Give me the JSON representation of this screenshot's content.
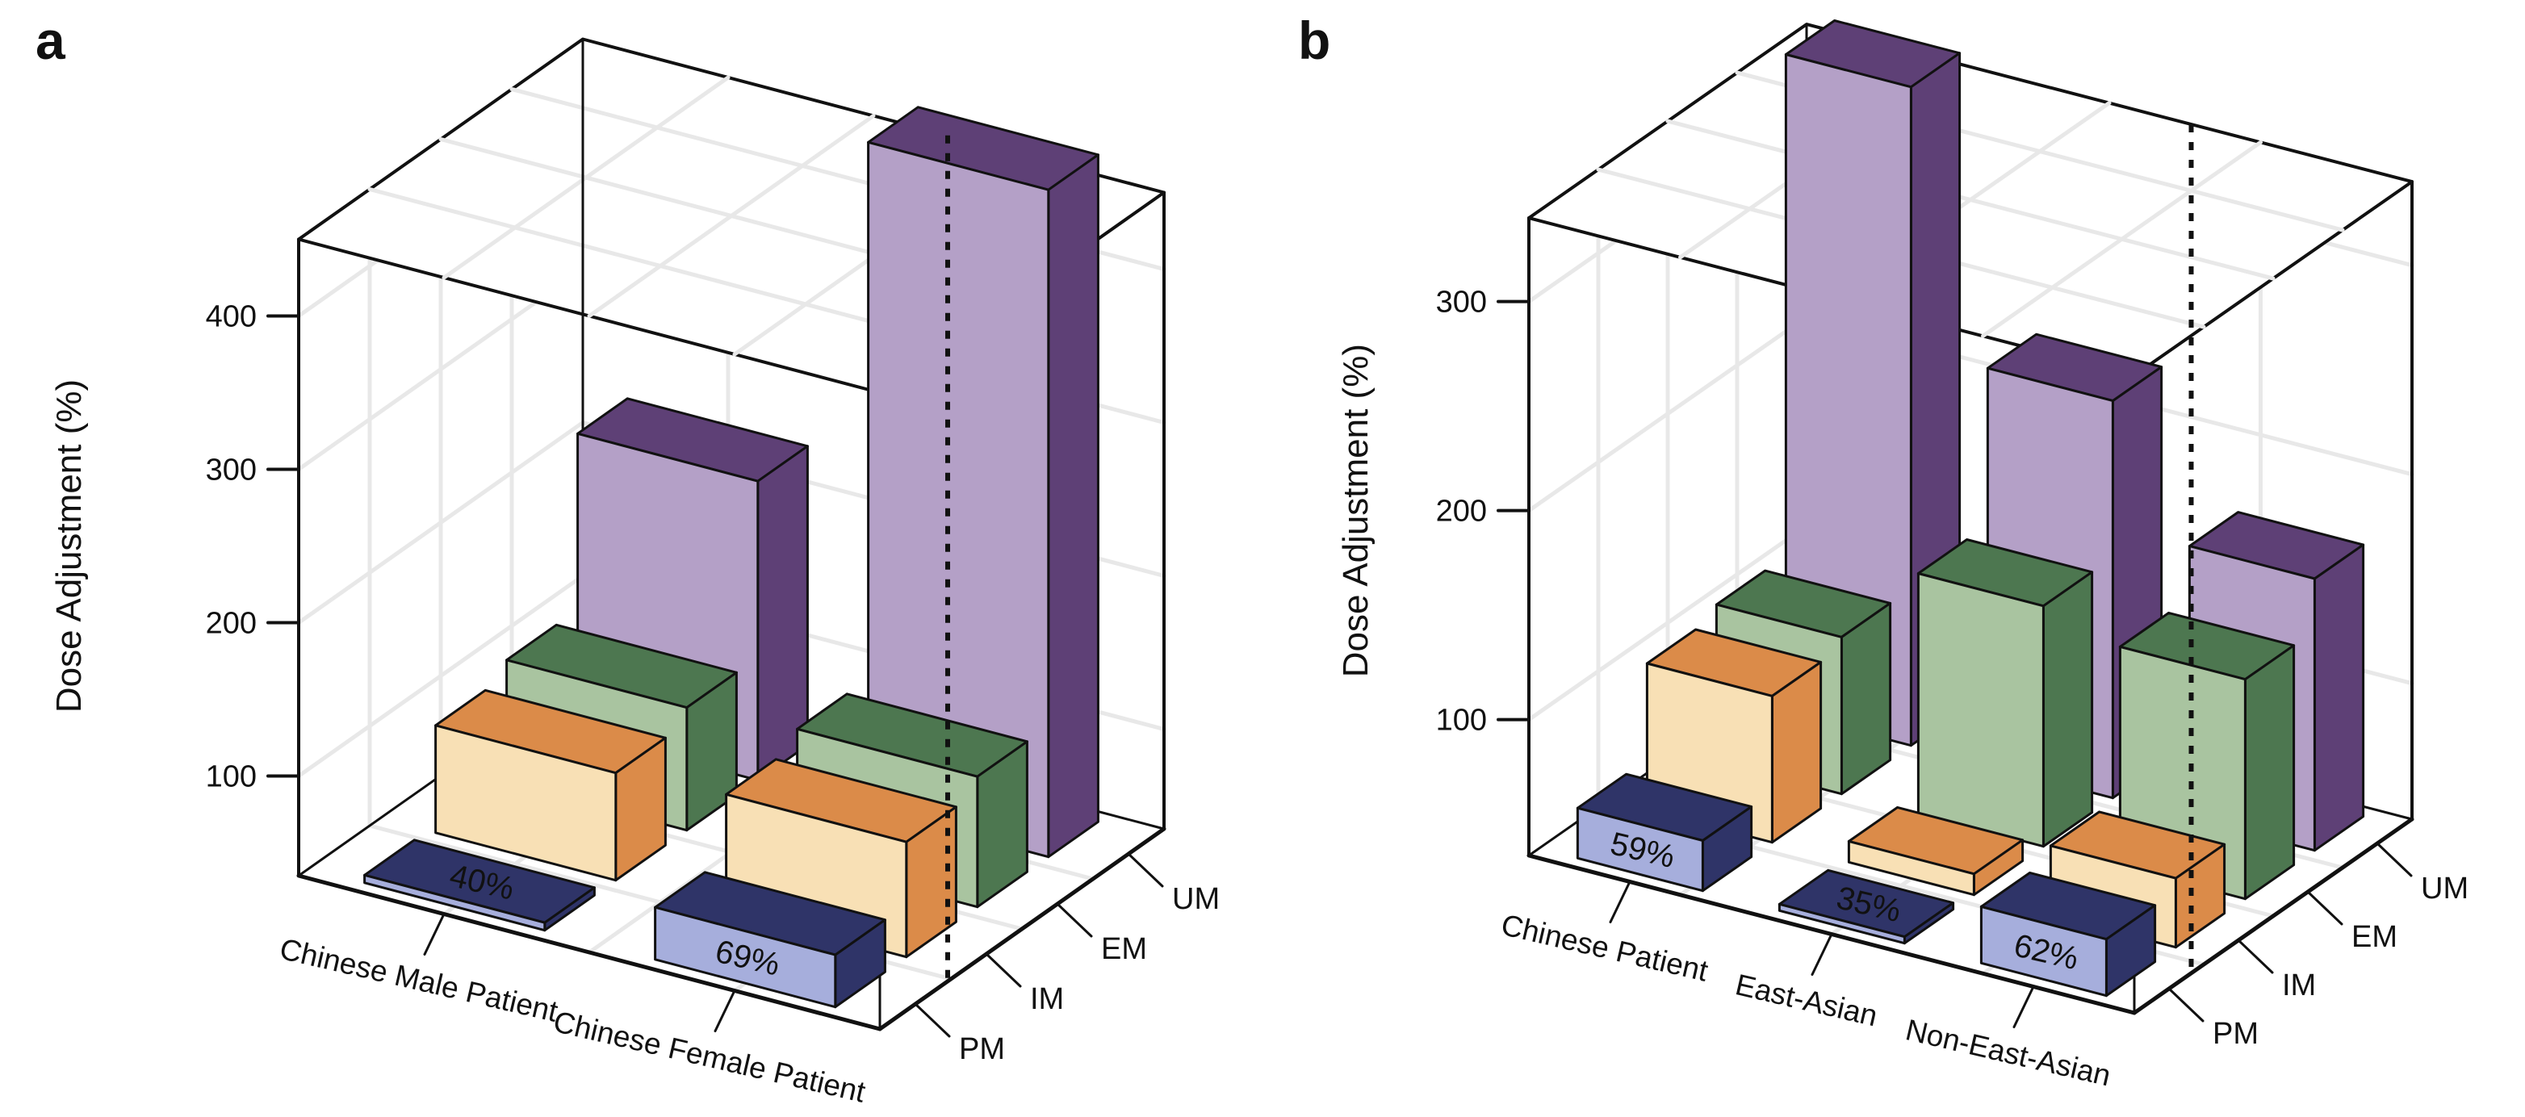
{
  "chart_data": [
    {
      "type": "bar",
      "projection": "3d",
      "letter": "a",
      "ylabel": "Dose Adjustment (%)",
      "yticks": [
        100,
        200,
        300,
        400
      ],
      "baseline": 35,
      "axis_top": 450,
      "grid": true,
      "depth_labels": [
        "PM",
        "IM",
        "EM",
        "UM"
      ],
      "categories": [
        {
          "label": "Chinese Male Patient",
          "pm_text": "40%",
          "values": {
            "PM": 40,
            "IM": 105,
            "EM": 115,
            "UM": 230
          }
        },
        {
          "label": "Chinese Female Patient",
          "pm_text": "69%",
          "values": {
            "PM": 69,
            "IM": 110,
            "EM": 120,
            "UM": 470
          }
        }
      ]
    },
    {
      "type": "bar",
      "projection": "3d",
      "letter": "b",
      "ylabel": "Dose Adjustment (%)",
      "yticks": [
        100,
        200,
        300
      ],
      "baseline": 35,
      "axis_top": 340,
      "grid": true,
      "depth_labels": [
        "PM",
        "IM",
        "EM",
        "UM"
      ],
      "categories": [
        {
          "label": "Chinese Patient",
          "pm_text": "59%",
          "values": {
            "PM": 59,
            "IM": 105,
            "EM": 110,
            "UM": 350
          }
        },
        {
          "label": "East-Asian",
          "pm_text": "35%",
          "values": {
            "PM": 35,
            "IM": 45,
            "EM": 150,
            "UM": 225
          }
        },
        {
          "label": "Non-East-Asian",
          "pm_text": "62%",
          "values": {
            "PM": 62,
            "IM": 68,
            "EM": 140,
            "UM": 165
          }
        }
      ]
    }
  ],
  "colors": {
    "levels": {
      "PM": {
        "front": "#A6AEDC",
        "dark": "#2F3468"
      },
      "IM": {
        "front": "#F8E0B5",
        "dark": "#DB8B49"
      },
      "EM": {
        "front": "#A9C4A0",
        "dark": "#4D7750"
      },
      "UM": {
        "front": "#B4A0C7",
        "dark": "#5E4076"
      }
    },
    "grid": "#E8E8E8",
    "frame": "#111111",
    "pct_text": "#EBEDF6",
    "text": "#111111"
  }
}
